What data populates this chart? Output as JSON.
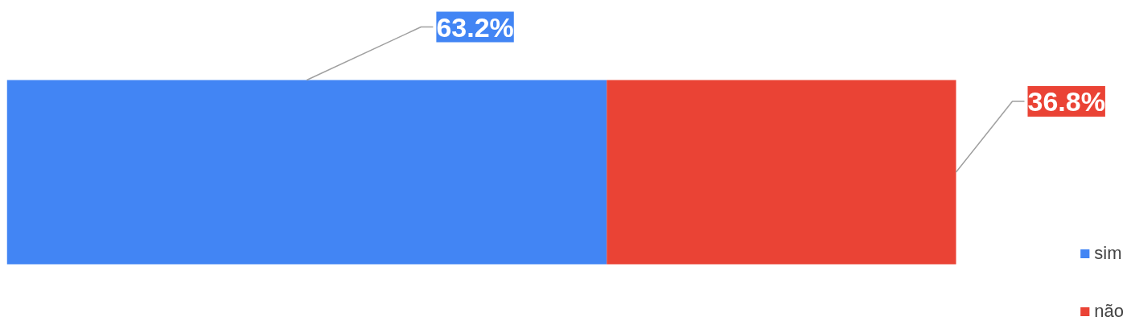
{
  "chart_data": {
    "type": "bar",
    "stacked": true,
    "orientation": "horizontal",
    "categories": [
      null
    ],
    "tick_labels": false,
    "grid": false,
    "legend": "bottom right",
    "series": [
      {
        "name": "sim",
        "color": "#4285f4",
        "values": [
          63.2
        ],
        "value_labels": [
          "63.2%"
        ]
      },
      {
        "name": "não",
        "color": "#ea4335",
        "values": [
          36.8
        ],
        "value_labels": [
          "36.8%"
        ]
      }
    ]
  }
}
